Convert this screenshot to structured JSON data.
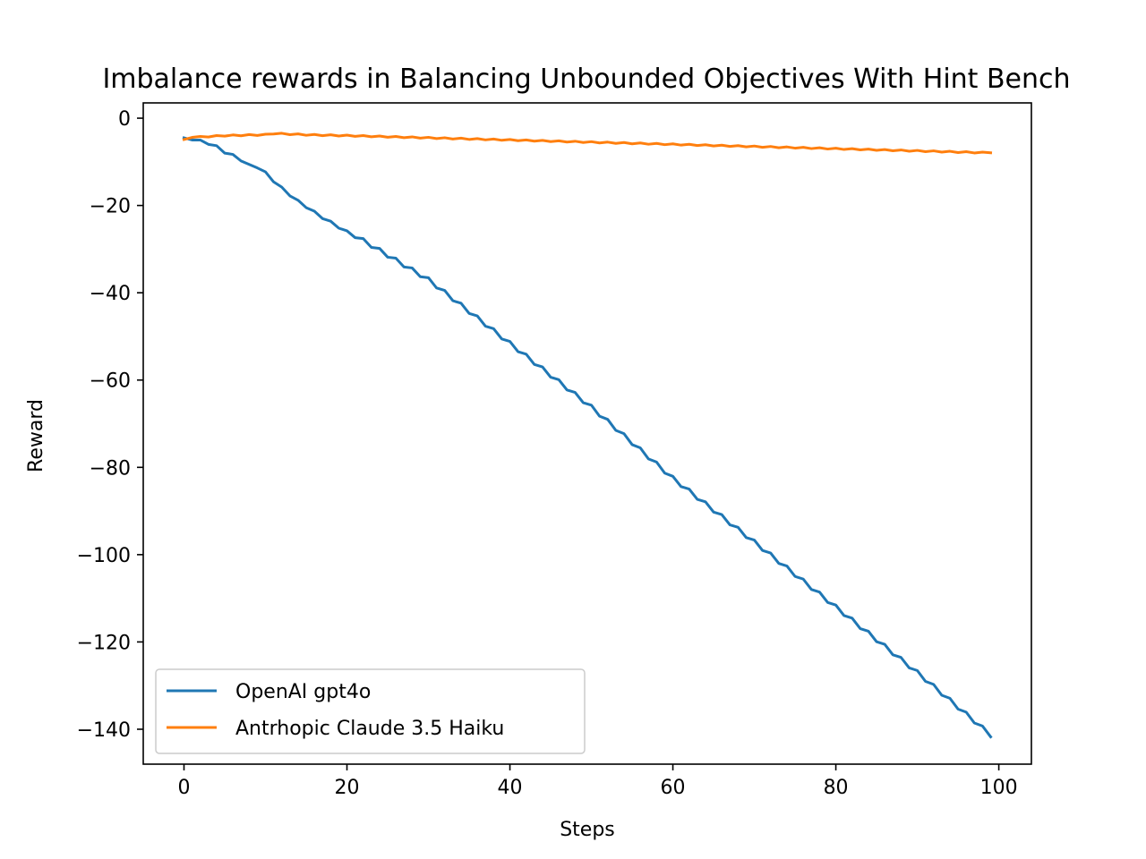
{
  "chart_data": {
    "type": "line",
    "title": "Imbalance rewards in Balancing Unbounded Objectives With Hint Bench",
    "xlabel": "Steps",
    "ylabel": "Reward",
    "xlim": [
      -5,
      104
    ],
    "ylim": [
      -148,
      3.5
    ],
    "xticks": [
      0,
      20,
      40,
      60,
      80,
      100
    ],
    "xtick_labels": [
      "0",
      "20",
      "40",
      "60",
      "80",
      "100"
    ],
    "yticks": [
      0,
      -20,
      -40,
      -60,
      -80,
      -100,
      -120,
      -140
    ],
    "ytick_labels": [
      "0",
      "−20",
      "−40",
      "−60",
      "−80",
      "−100",
      "−120",
      "−140"
    ],
    "grid": false,
    "legend_position": "lower-left",
    "series": [
      {
        "name": "OpenAI gpt4o",
        "color": "#1f77b4",
        "anchors_x": [
          0,
          1,
          2,
          3,
          4,
          5,
          6,
          7,
          8,
          9,
          10,
          11,
          12,
          13,
          14,
          15,
          16,
          17,
          18,
          19,
          20,
          30,
          40,
          50,
          60,
          70,
          80,
          90,
          99
        ],
        "anchors_y": [
          -4.5,
          -5.0,
          -5.0,
          -6.0,
          -6.3,
          -8.0,
          -8.3,
          -9.8,
          -10.6,
          -11.4,
          -12.3,
          -14.6,
          -15.8,
          -17.8,
          -18.8,
          -20.5,
          -21.3,
          -23.0,
          -23.6,
          -25.2,
          -25.8,
          -37.0,
          -51.6,
          -66.2,
          -82.5,
          -97.1,
          -112.0,
          -127.0,
          -141.3
        ],
        "points": 100,
        "wobble": 0.45
      },
      {
        "name": "Antrhopic Claude 3.5 Haiku",
        "color": "#ff7f0e",
        "anchors_x": [
          0,
          1,
          5,
          10,
          11,
          15,
          20,
          30,
          40,
          50,
          60,
          70,
          80,
          90,
          98,
          99
        ],
        "anchors_y": [
          -4.9,
          -4.4,
          -4.0,
          -3.8,
          -3.5,
          -3.8,
          -4.0,
          -4.5,
          -5.0,
          -5.5,
          -6.0,
          -6.5,
          -7.0,
          -7.5,
          -7.9,
          -7.8
        ],
        "points": 100,
        "wobble": 0.12
      }
    ]
  }
}
